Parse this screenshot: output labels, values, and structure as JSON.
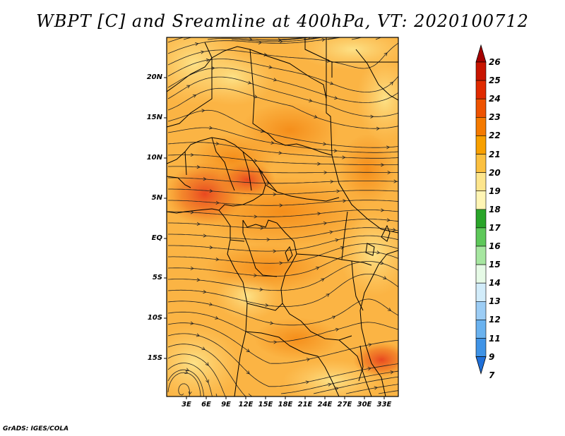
{
  "title": "WBPT [C] and Sreamline at 400hPa, VT: 2020100712",
  "footer": "GrADS: IGES/COLA",
  "map": {
    "lon_range": [
      0,
      35
    ],
    "lat_range": [
      -20,
      24
    ],
    "lat_ticks": [
      "20N",
      "15N",
      "10N",
      "5N",
      "EQ",
      "5S",
      "10S",
      "15S"
    ],
    "lon_ticks": [
      "3E",
      "6E",
      "9E",
      "12E",
      "15E",
      "18E",
      "21E",
      "24E",
      "27E",
      "30E",
      "33E"
    ]
  },
  "colorbar": {
    "labels": [
      "26",
      "25",
      "24",
      "23",
      "22",
      "21",
      "20",
      "19",
      "18",
      "17",
      "16",
      "15",
      "14",
      "13",
      "12",
      "11",
      "9",
      "7"
    ],
    "colors": [
      "#a50000",
      "#c81400",
      "#e02a00",
      "#ee5200",
      "#f57a00",
      "#f8a000",
      "#fbc040",
      "#fde58c",
      "#fff5b4",
      "#2aa52a",
      "#5ec85a",
      "#a6e6a0",
      "#e6fae6",
      "#d2ecfa",
      "#9ccdf5",
      "#6ab2ef",
      "#3f93e6",
      "#1f6fd8"
    ]
  }
}
